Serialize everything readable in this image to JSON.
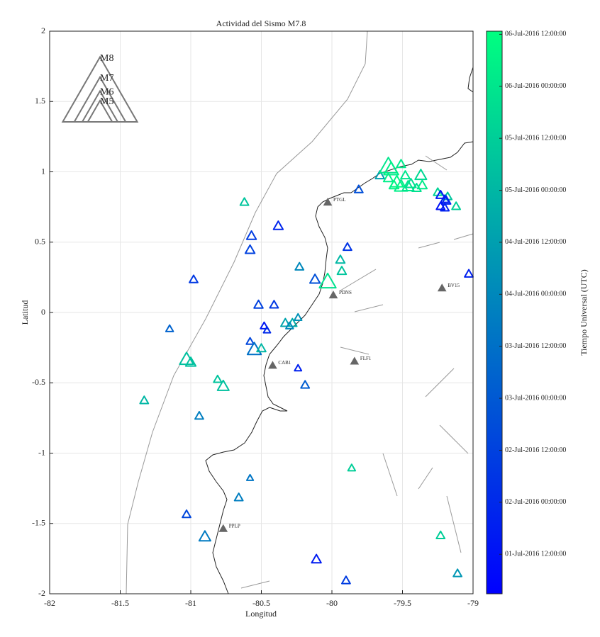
{
  "chart_data": {
    "type": "scatter",
    "title": "Actividad del Sismo M7.8",
    "xlabel": "Longitud",
    "ylabel": "Latitud",
    "xlim": [
      -82,
      -79
    ],
    "xticks": [
      -82,
      -81.5,
      -81,
      -80.5,
      -80,
      -79.5,
      -79
    ],
    "ylim": [
      -2,
      2
    ],
    "yticks": [
      -2,
      -1.5,
      -1,
      -0.5,
      0,
      0.5,
      1,
      1.5,
      2
    ],
    "grid": true,
    "x": [
      -80.62,
      -80.57,
      -80.58,
      -80.38,
      -80.98,
      -81.15,
      -80.23,
      -80.12,
      -80.03,
      -79.89,
      -79.94,
      -79.93,
      -80.52,
      -80.41,
      -80.48,
      -80.46,
      -80.33,
      -80.28,
      -80.24,
      -80.3,
      -80.58,
      -80.55,
      -80.5,
      -81.03,
      -81.0,
      -80.81,
      -80.77,
      -80.24,
      -80.19,
      -81.33,
      -80.94,
      -79.86,
      -80.58,
      -80.66,
      -81.03,
      -80.9,
      -80.11,
      -79.9,
      -79.23,
      -79.11,
      -79.03,
      -79.81,
      -79.66,
      -79.6,
      -79.58,
      -79.51,
      -79.54,
      -79.51,
      -79.48,
      -79.44,
      -79.46,
      -79.4,
      -79.37,
      -79.36,
      -79.6,
      -79.56,
      -79.25,
      -79.18,
      -79.12,
      -79.23,
      -79.2,
      -79.19,
      -79.23,
      -79.2
    ],
    "y": [
      0.78,
      0.54,
      0.44,
      0.61,
      0.23,
      -0.12,
      0.32,
      0.23,
      0.21,
      0.46,
      0.37,
      0.29,
      0.05,
      0.05,
      -0.1,
      -0.13,
      -0.08,
      -0.08,
      -0.04,
      -0.1,
      -0.21,
      -0.27,
      -0.26,
      -0.34,
      -0.36,
      -0.48,
      -0.53,
      -0.4,
      -0.52,
      -0.63,
      -0.74,
      -1.11,
      -1.18,
      -1.32,
      -1.44,
      -1.6,
      -1.76,
      -1.91,
      -1.59,
      -1.86,
      0.27,
      0.87,
      0.97,
      1.03,
      1.01,
      1.05,
      0.92,
      0.89,
      0.97,
      0.91,
      0.89,
      0.88,
      0.97,
      0.9,
      0.95,
      0.9,
      0.85,
      0.82,
      0.75,
      0.83,
      0.8,
      0.79,
      0.75,
      0.74
    ],
    "size": [
      4.5,
      4.7,
      4.7,
      4.7,
      4.5,
      4.3,
      4.5,
      4.8,
      5.6,
      4.5,
      4.6,
      4.6,
      4.6,
      4.5,
      4.3,
      4.2,
      4.6,
      4.6,
      4.3,
      4.3,
      4.3,
      5.3,
      4.6,
      5.3,
      4.8,
      4.4,
      5.0,
      4.2,
      4.5,
      4.5,
      4.5,
      4.3,
      4.1,
      4.5,
      4.5,
      5.0,
      4.7,
      4.5,
      4.5,
      4.5,
      4.5,
      4.5,
      4.6,
      5.7,
      5.4,
      4.6,
      5.2,
      5.2,
      4.6,
      4.8,
      5.0,
      4.6,
      5.0,
      4.7,
      4.7,
      4.7,
      4.5,
      4.5,
      4.5,
      4.6,
      4.5,
      4.6,
      4.5,
      4.5
    ],
    "time": [
      5.3,
      2.4,
      2.5,
      1.9,
      2.3,
      3.2,
      4.0,
      2.8,
      5.9,
      2.2,
      5.0,
      5.3,
      2.5,
      2.3,
      1.6,
      2.0,
      4.6,
      4.8,
      4.2,
      4.0,
      2.6,
      3.5,
      5.0,
      5.2,
      5.2,
      5.3,
      5.2,
      1.8,
      3.1,
      5.0,
      3.8,
      5.5,
      3.6,
      3.8,
      2.6,
      3.7,
      1.7,
      2.4,
      5.5,
      4.3,
      1.8,
      2.8,
      4.5,
      6.0,
      6.2,
      6.1,
      6.3,
      6.2,
      6.0,
      5.8,
      6.0,
      5.9,
      5.7,
      6.1,
      6.2,
      6.3,
      5.6,
      5.3,
      5.5,
      1.6,
      1.7,
      1.9,
      1.5,
      1.8
    ],
    "colormap": [
      "#0000ff",
      "#00ff80"
    ],
    "clabel": "Tiempo Universal (UTC)",
    "clim": [
      1.12,
      6.53
    ],
    "cticks": [
      {
        "value": 1.5,
        "label": "01-Jul-2016 12:00:00"
      },
      {
        "value": 2,
        "label": "02-Jul-2016 00:00:00"
      },
      {
        "value": 2.5,
        "label": "02-Jul-2016 12:00:00"
      },
      {
        "value": 3,
        "label": "03-Jul-2016 00:00:00"
      },
      {
        "value": 3.5,
        "label": "03-Jul-2016 12:00:00"
      },
      {
        "value": 4,
        "label": "04-Jul-2016 00:00:00"
      },
      {
        "value": 4.5,
        "label": "04-Jul-2016 12:00:00"
      },
      {
        "value": 5,
        "label": "05-Jul-2016 00:00:00"
      },
      {
        "value": 5.5,
        "label": "05-Jul-2016 12:00:00"
      },
      {
        "value": 6,
        "label": "06-Jul-2016 00:00:00"
      },
      {
        "value": 6.5,
        "label": "06-Jul-2016 12:00:00"
      }
    ],
    "size_legend": {
      "values": [
        8,
        7,
        6,
        5
      ],
      "labels": [
        "M8",
        "M7",
        "M6",
        "M5"
      ],
      "color": "#777777"
    },
    "stations": {
      "color": "#666666",
      "names": [
        "PTGL",
        "PDNS",
        "CAB1",
        "FLF1",
        "BV15",
        "PPLP"
      ],
      "x": [
        -80.03,
        -79.99,
        -80.42,
        -79.84,
        -79.22,
        -80.77
      ],
      "y": [
        0.78,
        0.12,
        -0.38,
        -0.35,
        0.17,
        -1.54
      ]
    }
  }
}
